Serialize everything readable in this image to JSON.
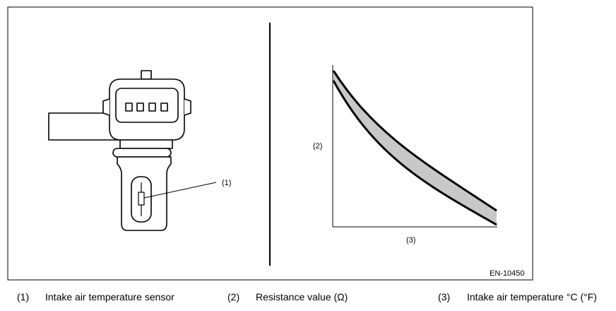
{
  "figure": {
    "code": "EN-10450",
    "callouts": {
      "sensor": "(1)",
      "y_axis": "(2)",
      "x_axis": "(3)"
    }
  },
  "legend": [
    {
      "num": "(1)",
      "text": "Intake air temperature sensor"
    },
    {
      "num": "(2)",
      "text": "Resistance value (Ω)"
    },
    {
      "num": "(3)",
      "text": "Intake air temperature °C (°F)"
    }
  ],
  "chart_data": {
    "type": "area",
    "xlabel": "(3)",
    "ylabel": "(2)",
    "grid": false,
    "note": "Resistance decreases as intake air temperature rises; shaded band shows tolerance range"
  }
}
